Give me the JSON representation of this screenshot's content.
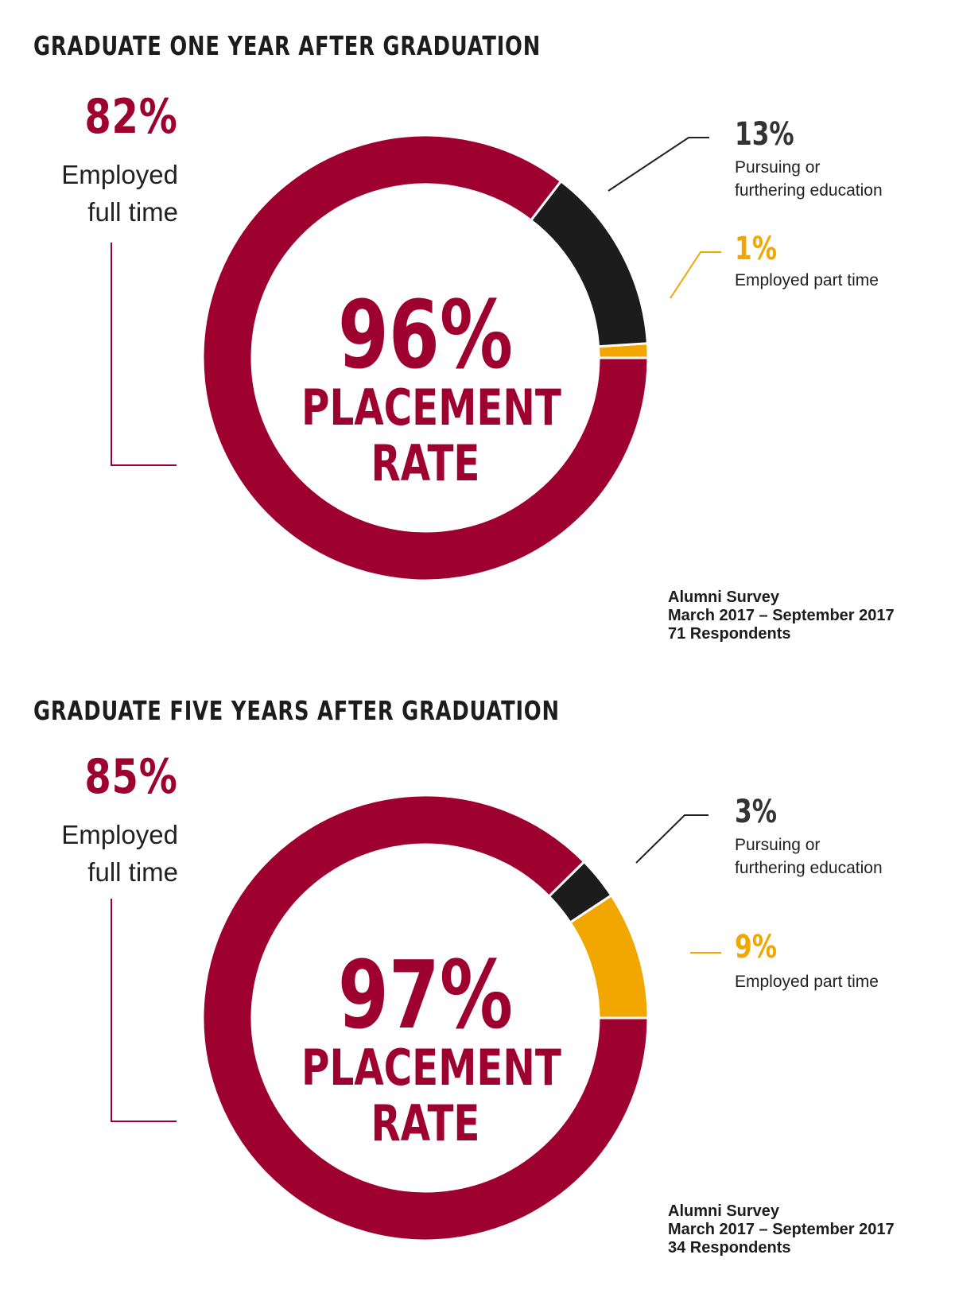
{
  "colors": {
    "fulltime": "#9e0030",
    "education": "#1c1c1c",
    "parttime": "#f2a600",
    "separator": "#ffffff"
  },
  "chart_data": [
    {
      "type": "pie",
      "title": "GRADUATE ONE YEAR AFTER GRADUATION",
      "center_value": "96%",
      "center_label_line1": "PLACEMENT",
      "center_label_line2": "RATE",
      "slices": [
        {
          "label_line1": "Employed",
          "label_line2": "full time",
          "value": 82,
          "display": "82%",
          "color": "#9e0030"
        },
        {
          "label_line1": "Pursuing or",
          "label_line2": "furthering education",
          "value": 13,
          "display": "13%",
          "color": "#1c1c1c"
        },
        {
          "label_line1": "Employed part time",
          "label_line2": "",
          "value": 1,
          "display": "1%",
          "color": "#f2a600"
        }
      ],
      "source": [
        "Alumni Survey",
        "March 2017 – September 2017",
        "71 Respondents"
      ]
    },
    {
      "type": "pie",
      "title": "GRADUATE FIVE YEARS AFTER GRADUATION",
      "center_value": "97%",
      "center_label_line1": "PLACEMENT",
      "center_label_line2": "RATE",
      "slices": [
        {
          "label_line1": "Employed",
          "label_line2": "full time",
          "value": 85,
          "display": "85%",
          "color": "#9e0030"
        },
        {
          "label_line1": "Pursuing or",
          "label_line2": "furthering education",
          "value": 3,
          "display": "3%",
          "color": "#1c1c1c"
        },
        {
          "label_line1": "Employed part time",
          "label_line2": "",
          "value": 9,
          "display": "9%",
          "color": "#f2a600"
        }
      ],
      "source": [
        "Alumni Survey",
        "March 2017 – September 2017",
        "34 Respondents"
      ]
    }
  ]
}
